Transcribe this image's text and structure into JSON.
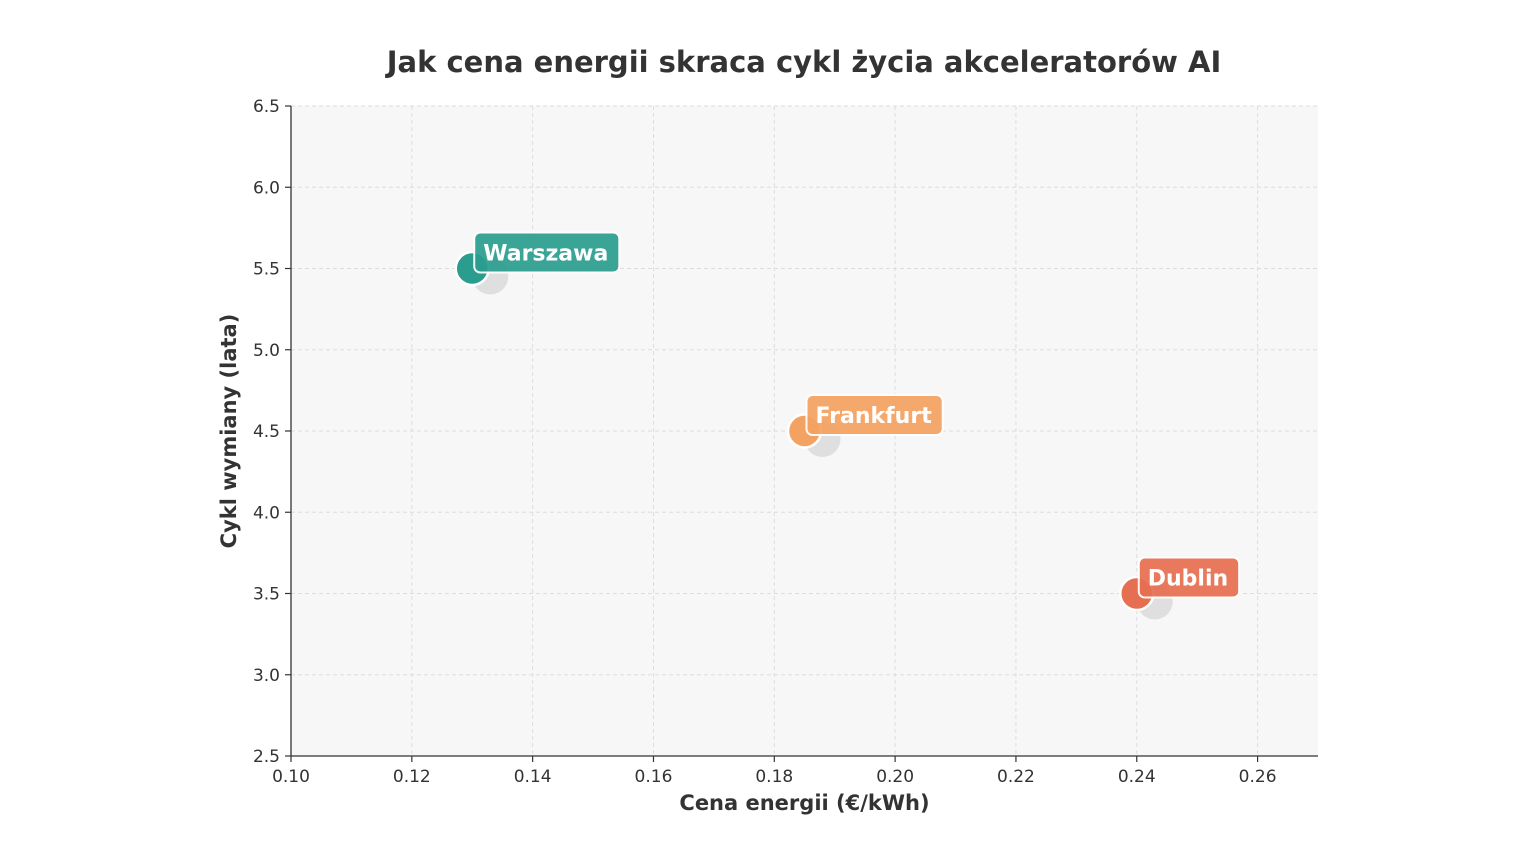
{
  "chart_data": {
    "type": "scatter",
    "title": "Jak cena energii skraca cykl życia akceleratorów AI",
    "xlabel": "Cena energii (€/kWh)",
    "ylabel": "Cykl wymiany (lata)",
    "xlim": [
      0.1,
      0.27
    ],
    "ylim": [
      2.5,
      6.5
    ],
    "x_ticks": [
      "0.10",
      "0.12",
      "0.14",
      "0.16",
      "0.18",
      "0.20",
      "0.22",
      "0.24",
      "0.26"
    ],
    "y_ticks": [
      "2.5",
      "3.0",
      "3.5",
      "4.0",
      "4.5",
      "5.0",
      "5.5",
      "6.0",
      "6.5"
    ],
    "grid": true,
    "points": [
      {
        "label": "Warszawa",
        "x": 0.13,
        "y": 5.5,
        "color": "#2a9d8f"
      },
      {
        "label": "Frankfurt",
        "x": 0.185,
        "y": 4.5,
        "color": "#f4a261"
      },
      {
        "label": "Dublin",
        "x": 0.24,
        "y": 3.5,
        "color": "#e76f51"
      }
    ]
  },
  "colors": {
    "plot_background": "#f7f7f7",
    "grid": "#dddddd",
    "axis": "#333333",
    "text": "#333333",
    "shadow": "#cccccc"
  }
}
